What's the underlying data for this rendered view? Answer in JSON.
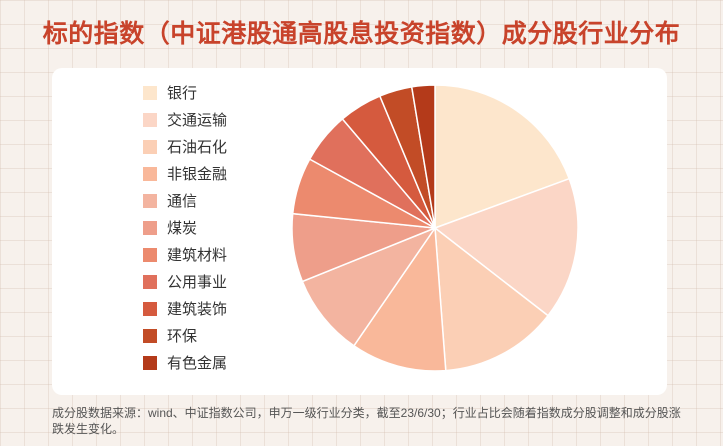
{
  "title": "标的指数（中证港股通高股息投资指数）成分股行业分布",
  "footnote": "成分股数据来源：wind、中证指数公司，申万一级行业分类，截至23/6/30；行业占比会随着指数成分股调整和成分股涨跌发生变化。",
  "chart_data": {
    "type": "pie",
    "title": "",
    "legend_position": "left",
    "start_angle": "12 o'clock, clockwise",
    "categories": [
      "银行",
      "交通运输",
      "石油石化",
      "非银金融",
      "通信",
      "煤炭",
      "建筑材料",
      "公用事业",
      "建筑装饰",
      "环保",
      "有色金属"
    ],
    "values": [
      19.4,
      16.1,
      13.3,
      10.8,
      9.3,
      7.7,
      6.4,
      5.8,
      4.9,
      3.7,
      2.6
    ],
    "unit": "%",
    "colors": [
      "#fde6cc",
      "#fbd6c6",
      "#fbcfb5",
      "#f9b89a",
      "#f3b4a0",
      "#ee9e8a",
      "#ec8a6e",
      "#e0705c",
      "#d55a3e",
      "#c24c26",
      "#b43a1a"
    ]
  }
}
